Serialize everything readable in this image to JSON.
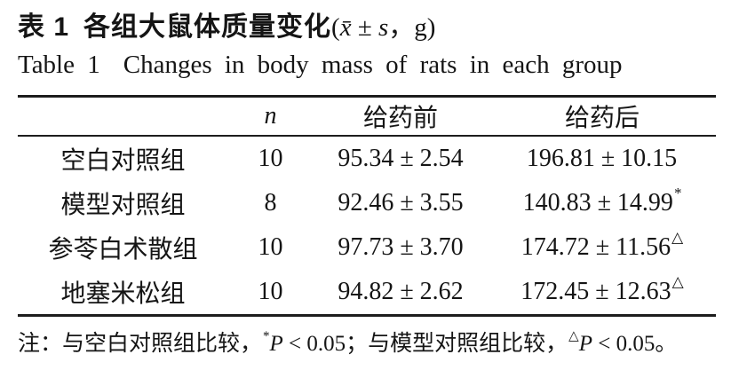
{
  "page": {
    "background": "#ffffff",
    "text_color": "#151515",
    "rule_color": "#1d1d1d"
  },
  "title_zh": {
    "label": "表 1",
    "text": "各组大鼠体质量变化",
    "formula": {
      "open": "(",
      "xbar": "x̄",
      "pm": " ± ",
      "s": "s",
      "tail": "，g)"
    }
  },
  "title_en": {
    "label": "Table 1",
    "text": "Changes in body mass of rats in each group"
  },
  "table": {
    "columns": {
      "group": "",
      "n": "n",
      "before": "给药前",
      "after": "给药后"
    },
    "rows": [
      {
        "group": "空白对照组",
        "n": "10",
        "before": "95.34 ± 2.54",
        "after": "196.81 ± 10.15",
        "marker": ""
      },
      {
        "group": "模型对照组",
        "n": "8",
        "before": "92.46 ± 3.55",
        "after": "140.83 ± 14.99",
        "marker": "*"
      },
      {
        "group": "参苓白术散组",
        "n": "10",
        "before": "97.73 ± 3.70",
        "after": "174.72 ± 11.56",
        "marker": "△"
      },
      {
        "group": "地塞米松组",
        "n": "10",
        "before": "94.82 ± 2.62",
        "after": "172.45 ± 12.63",
        "marker": "△"
      }
    ]
  },
  "note": {
    "prefix": "注：与空白对照组比较，",
    "marker1": "*",
    "p1": "P",
    "seg1": " < 0.05；与模型对照组比较，",
    "marker2": "△",
    "p2": "P",
    "seg2": " < 0.05。"
  },
  "chart_data": {
    "type": "table",
    "title": "表 1 各组大鼠体质量变化(x̄ ± s，g) / Table 1 Changes in body mass of rats in each group",
    "columns": [
      "",
      "n",
      "给药前",
      "给药后"
    ],
    "rows": [
      [
        "空白对照组",
        10,
        "95.34 ± 2.54",
        "196.81 ± 10.15"
      ],
      [
        "模型对照组",
        8,
        "92.46 ± 3.55",
        "140.83 ± 14.99*"
      ],
      [
        "参苓白术散组",
        10,
        "97.73 ± 3.70",
        "174.72 ± 11.56△"
      ],
      [
        "地塞米松组",
        10,
        "94.82 ± 2.62",
        "172.45 ± 12.63△"
      ]
    ],
    "footnote": "注：与空白对照组比较，*P < 0.05；与模型对照组比较，△P < 0.05。"
  }
}
